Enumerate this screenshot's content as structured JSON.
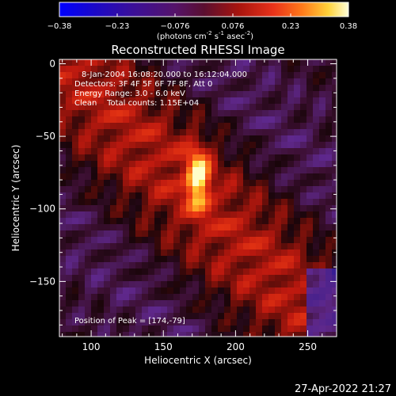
{
  "chart_data": {
    "type": "heatmap",
    "title": "Reconstructed RHESSI Image",
    "xlabel": "Heliocentric X (arcsec)",
    "ylabel": "Heliocentric Y (arcsec)",
    "xlim": [
      78,
      270
    ],
    "ylim": [
      -188,
      3
    ],
    "xticks": [
      100,
      150,
      200,
      250
    ],
    "yticks": [
      0,
      -50,
      -100,
      -150
    ],
    "colorbar": {
      "range": [
        -0.38,
        0.38
      ],
      "tick_labels": [
        "-0.38",
        "-0.23",
        "-0.076",
        "0.076",
        "0.23",
        "0.38"
      ],
      "unit_label_main": "(photons cm",
      "unit_label_exp1": "-2",
      "unit_label_mid": " s",
      "unit_label_exp2": "-1",
      "unit_label_tail": " asec",
      "unit_label_exp3": "-2",
      "unit_label_end": ")"
    },
    "annotations": {
      "time_range": "8-Jan-2004 16:08:20.000 to 16:12:04.000",
      "detectors": "Detectors: 3F 4F 5F 6F 7F 8F, Att 0",
      "energy_range": "Energy Range: 3.0 - 6.0 keV",
      "algorithm_counts": "Clean    Total counts: 1.15E+04",
      "peak_position": "Position of Peak = [174,-79]"
    },
    "peak": {
      "x": 174,
      "y": -79
    },
    "grid": false
  },
  "footer": {
    "date": "27-Apr-2022 21:27"
  }
}
